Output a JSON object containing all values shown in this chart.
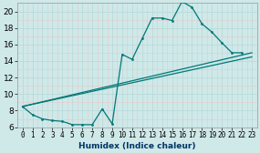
{
  "xlabel": "Humidex (Indice chaleur)",
  "background_color": "#cfe8e8",
  "grid_color": "#d8ecec",
  "line_color": "#007878",
  "xlim": [
    -0.5,
    23.5
  ],
  "ylim": [
    6,
    21
  ],
  "yticks": [
    6,
    8,
    10,
    12,
    14,
    16,
    18,
    20
  ],
  "xticks": [
    0,
    1,
    2,
    3,
    4,
    5,
    6,
    7,
    8,
    9,
    10,
    11,
    12,
    13,
    14,
    15,
    16,
    17,
    18,
    19,
    20,
    21,
    22,
    23
  ],
  "jagged_x": [
    0,
    1,
    2,
    3,
    4,
    5,
    6,
    7,
    8,
    9,
    10,
    11,
    12,
    13,
    14,
    15,
    16,
    17,
    18,
    19,
    20,
    21,
    22
  ],
  "jagged_y": [
    8.5,
    7.5,
    7.0,
    6.8,
    6.7,
    6.3,
    6.3,
    6.3,
    8.2,
    6.4,
    14.8,
    14.2,
    16.7,
    19.2,
    19.2,
    18.9,
    21.2,
    20.5,
    18.5,
    17.5,
    16.2,
    15.0,
    15.0
  ],
  "line1_x": [
    0,
    23
  ],
  "line1_y": [
    8.5,
    15.0
  ],
  "line2_x": [
    0,
    23
  ],
  "line2_y": [
    8.5,
    14.5
  ],
  "lw": 0.9,
  "ms": 2.0,
  "xlabel_color": "#003366",
  "xlabel_fontsize": 6.5,
  "tick_fontsize_x": 5.5,
  "tick_fontsize_y": 6.5
}
